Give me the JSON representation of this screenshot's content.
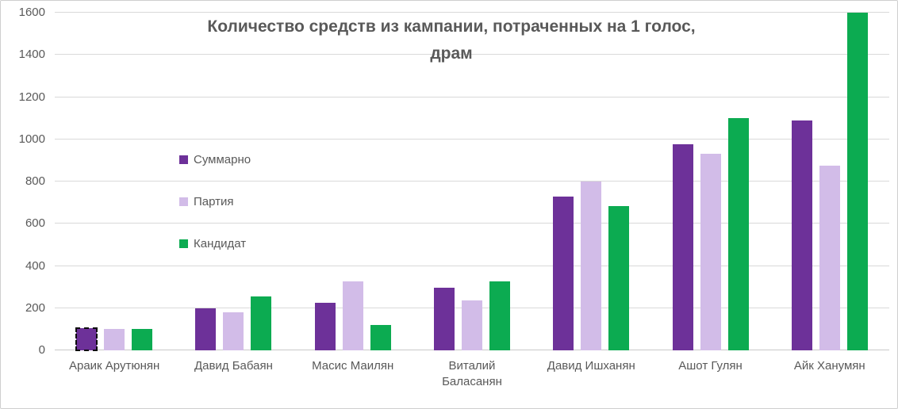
{
  "title": {
    "line1": "Количество средств из кампании, потраченных на 1 голос,",
    "line2": "драм"
  },
  "colors": {
    "total": "#6d3199",
    "party": "#d2bce8",
    "candidate": "#0cab51",
    "grid": "#d9d9d9",
    "axis": "#c8c8c8",
    "text": "#595959"
  },
  "chart_data": {
    "type": "bar",
    "title": "Количество средств из кампании, потраченных на 1 голос, драм",
    "xlabel": "",
    "ylabel": "",
    "ylim": [
      0,
      1600
    ],
    "yticks": [
      0,
      200,
      400,
      600,
      800,
      1000,
      1200,
      1400,
      1600
    ],
    "grid": true,
    "legend_position": "inside-left",
    "categories": [
      "Араик Арутюнян",
      "Давид Бабаян",
      "Масис Маилян",
      "Виталий Баласанян",
      "Давид Ишханян",
      "Ашот Гулян",
      "Айк Ханумян"
    ],
    "series": [
      {
        "name": "Суммарно",
        "color_key": "total",
        "values": [
          105,
          200,
          225,
          295,
          730,
          975,
          1090
        ]
      },
      {
        "name": "Партия",
        "color_key": "party",
        "values": [
          100,
          180,
          325,
          235,
          800,
          930,
          875
        ]
      },
      {
        "name": "Кандидат",
        "color_key": "candidate",
        "values": [
          100,
          255,
          120,
          325,
          685,
          1100,
          1600
        ]
      }
    ],
    "selected_point": {
      "series_index": 0,
      "category_index": 0
    }
  }
}
